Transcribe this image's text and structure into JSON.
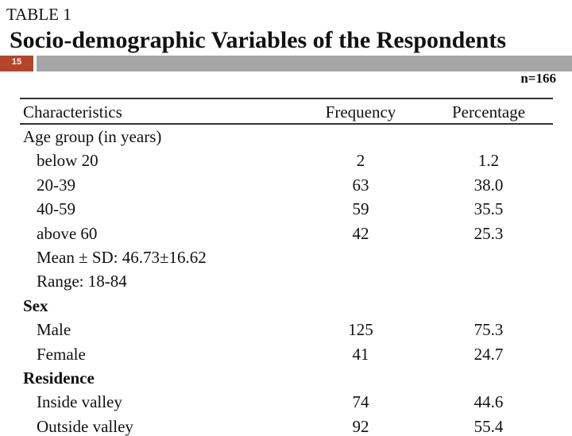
{
  "header": {
    "label": "TABLE 1",
    "title": "Socio-demographic Variables of the Respondents",
    "slide_number": "15",
    "note": "n=166"
  },
  "table": {
    "columns": [
      "Characteristics",
      "Frequency",
      "Percentage"
    ],
    "groups": [
      {
        "title": "Age group (in years)",
        "bold": false,
        "rows": [
          {
            "label": "below 20",
            "frequency": "2",
            "percentage": "1.2"
          },
          {
            "label": "20-39",
            "frequency": "63",
            "percentage": "38.0"
          },
          {
            "label": "40-59",
            "frequency": "59",
            "percentage": "35.5"
          },
          {
            "label": "above 60",
            "frequency": "42",
            "percentage": "25.3"
          },
          {
            "label": "Mean ± SD: 46.73±16.62",
            "frequency": null,
            "percentage": null
          },
          {
            "label": "Range: 18-84",
            "frequency": null,
            "percentage": null
          }
        ]
      },
      {
        "title": "Sex",
        "bold": true,
        "rows": [
          {
            "label": "Male",
            "frequency": "125",
            "percentage": "75.3"
          },
          {
            "label": "Female",
            "frequency": "41",
            "percentage": "24.7"
          }
        ]
      },
      {
        "title": "Residence",
        "bold": true,
        "rows": [
          {
            "label": "Inside valley",
            "frequency": "74",
            "percentage": "44.6"
          },
          {
            "label": "Outside valley",
            "frequency": "92",
            "percentage": "55.4"
          }
        ]
      }
    ]
  }
}
